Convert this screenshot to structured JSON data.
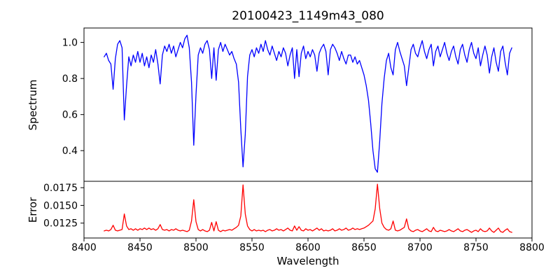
{
  "figure": {
    "title": "20100423_1149m43_080",
    "xlabel": "Wavelength",
    "top_ylabel": "Spectrum",
    "bottom_ylabel": "Error"
  },
  "colors": {
    "spectrum_line": "#0000ff",
    "error_line": "#ff0000",
    "axis": "#000000",
    "background": "#ffffff"
  },
  "chart_data": {
    "type": "line",
    "title": "20100423_1149m43_080",
    "xlabel": "Wavelength",
    "grid": false,
    "legend": "none",
    "xlim": [
      8400,
      8800
    ],
    "xticks": [
      8400,
      8450,
      8500,
      8550,
      8600,
      8650,
      8700,
      8750,
      8800
    ],
    "xtick_labels": [
      "8400",
      "8450",
      "8500",
      "8550",
      "8600",
      "8650",
      "8700",
      "8750",
      "8800"
    ],
    "x_start": 8418,
    "x_step": 2,
    "panels": [
      {
        "ylabel": "Spectrum",
        "ylim": [
          0.23,
          1.08
        ],
        "yticks": [
          0.4,
          0.6,
          0.8,
          1.0
        ],
        "ytick_labels": [
          "0.4",
          "0.6",
          "0.8",
          "1.0"
        ],
        "series_name": "spectrum",
        "color": "#0000ff",
        "notable_features": "Ca II triplet absorption lines near 8498, 8542, 8662 with depths ~0.43, ~0.31, ~0.28",
        "values": [
          0.92,
          0.94,
          0.9,
          0.88,
          0.74,
          0.91,
          0.99,
          1.01,
          0.97,
          0.57,
          0.76,
          0.92,
          0.87,
          0.93,
          0.89,
          0.95,
          0.89,
          0.94,
          0.87,
          0.92,
          0.86,
          0.93,
          0.89,
          0.96,
          0.88,
          0.77,
          0.93,
          0.98,
          0.95,
          0.99,
          0.94,
          0.98,
          0.92,
          0.96,
          1.0,
          0.97,
          1.02,
          1.04,
          0.97,
          0.78,
          0.43,
          0.71,
          0.93,
          0.97,
          0.94,
          0.99,
          1.01,
          0.96,
          0.8,
          0.97,
          0.79,
          0.96,
          1.0,
          0.95,
          0.99,
          0.96,
          0.93,
          0.95,
          0.91,
          0.88,
          0.78,
          0.52,
          0.31,
          0.49,
          0.81,
          0.93,
          0.96,
          0.92,
          0.97,
          0.94,
          0.99,
          0.95,
          1.01,
          0.96,
          0.93,
          0.98,
          0.94,
          0.9,
          0.95,
          0.92,
          0.97,
          0.94,
          0.87,
          0.93,
          0.97,
          0.8,
          0.96,
          0.81,
          0.94,
          0.98,
          0.91,
          0.95,
          0.92,
          0.96,
          0.93,
          0.84,
          0.94,
          0.97,
          0.99,
          0.95,
          0.82,
          0.96,
          0.99,
          0.97,
          0.94,
          0.9,
          0.95,
          0.91,
          0.88,
          0.93,
          0.93,
          0.89,
          0.92,
          0.88,
          0.9,
          0.86,
          0.82,
          0.76,
          0.68,
          0.55,
          0.4,
          0.3,
          0.28,
          0.45,
          0.66,
          0.8,
          0.9,
          0.94,
          0.86,
          0.82,
          0.96,
          1.0,
          0.95,
          0.91,
          0.87,
          0.76,
          0.86,
          0.96,
          0.99,
          0.94,
          0.92,
          0.97,
          1.01,
          0.95,
          0.91,
          0.96,
          0.99,
          0.87,
          0.95,
          0.98,
          0.92,
          0.96,
          1.0,
          0.94,
          0.9,
          0.95,
          0.98,
          0.92,
          0.88,
          0.96,
          0.99,
          0.93,
          0.89,
          0.96,
          1.0,
          0.94,
          0.91,
          0.97,
          0.87,
          0.93,
          0.98,
          0.93,
          0.83,
          0.92,
          0.97,
          0.89,
          0.84,
          0.95,
          0.98,
          0.89,
          0.82,
          0.94,
          0.97
        ]
      },
      {
        "ylabel": "Error",
        "ylim": [
          0.0104,
          0.0184
        ],
        "yticks": [
          0.0125,
          0.015,
          0.0175
        ],
        "ytick_labels": [
          "0.0125",
          "0.0150",
          "0.0175"
        ],
        "series_name": "error",
        "color": "#ff0000",
        "notable_features": "Error spikes at ~8436 (0.0138), ~8498 (0.0158), ~8542 (0.0179), ~8662 (0.0180)",
        "values": [
          0.0114,
          0.0115,
          0.0114,
          0.0116,
          0.0122,
          0.0115,
          0.0114,
          0.0115,
          0.0116,
          0.0138,
          0.0121,
          0.0116,
          0.0117,
          0.0115,
          0.0117,
          0.0115,
          0.0117,
          0.0116,
          0.0118,
          0.0116,
          0.0118,
          0.0116,
          0.0117,
          0.0115,
          0.0117,
          0.0123,
          0.0116,
          0.0115,
          0.0116,
          0.0114,
          0.0116,
          0.0115,
          0.0117,
          0.0115,
          0.0114,
          0.0115,
          0.0114,
          0.0113,
          0.0115,
          0.0128,
          0.0158,
          0.0127,
          0.0116,
          0.0114,
          0.0116,
          0.0114,
          0.0113,
          0.0115,
          0.0126,
          0.0114,
          0.0127,
          0.0115,
          0.0113,
          0.0115,
          0.0114,
          0.0115,
          0.0116,
          0.0115,
          0.0117,
          0.0119,
          0.0122,
          0.0135,
          0.0179,
          0.0138,
          0.0121,
          0.0116,
          0.0114,
          0.0116,
          0.0114,
          0.0115,
          0.0114,
          0.0115,
          0.0113,
          0.0115,
          0.0116,
          0.0114,
          0.0115,
          0.0117,
          0.0115,
          0.0116,
          0.0114,
          0.0116,
          0.0118,
          0.0115,
          0.0114,
          0.0121,
          0.0115,
          0.012,
          0.0115,
          0.0114,
          0.0117,
          0.0115,
          0.0116,
          0.0114,
          0.0116,
          0.0118,
          0.0115,
          0.0117,
          0.0114,
          0.0115,
          0.0114,
          0.0115,
          0.0117,
          0.0114,
          0.0115,
          0.0117,
          0.0115,
          0.0116,
          0.0118,
          0.0115,
          0.0116,
          0.0118,
          0.0116,
          0.0117,
          0.0116,
          0.0117,
          0.0118,
          0.012,
          0.0122,
          0.0125,
          0.0128,
          0.0145,
          0.018,
          0.0146,
          0.0125,
          0.0119,
          0.0116,
          0.0115,
          0.0117,
          0.0128,
          0.0115,
          0.0114,
          0.0115,
          0.0117,
          0.0119,
          0.0131,
          0.0117,
          0.0114,
          0.0113,
          0.0115,
          0.0116,
          0.0114,
          0.0113,
          0.0115,
          0.0117,
          0.0114,
          0.0113,
          0.0119,
          0.0114,
          0.0113,
          0.0115,
          0.0114,
          0.0113,
          0.0114,
          0.0116,
          0.0114,
          0.0113,
          0.0115,
          0.0117,
          0.0114,
          0.0113,
          0.0115,
          0.0116,
          0.0114,
          0.0112,
          0.0114,
          0.0115,
          0.0113,
          0.0117,
          0.0114,
          0.0113,
          0.0114,
          0.0118,
          0.0114,
          0.0112,
          0.0115,
          0.0118,
          0.0113,
          0.0112,
          0.0115,
          0.0117,
          0.0113,
          0.0112
        ]
      }
    ]
  }
}
